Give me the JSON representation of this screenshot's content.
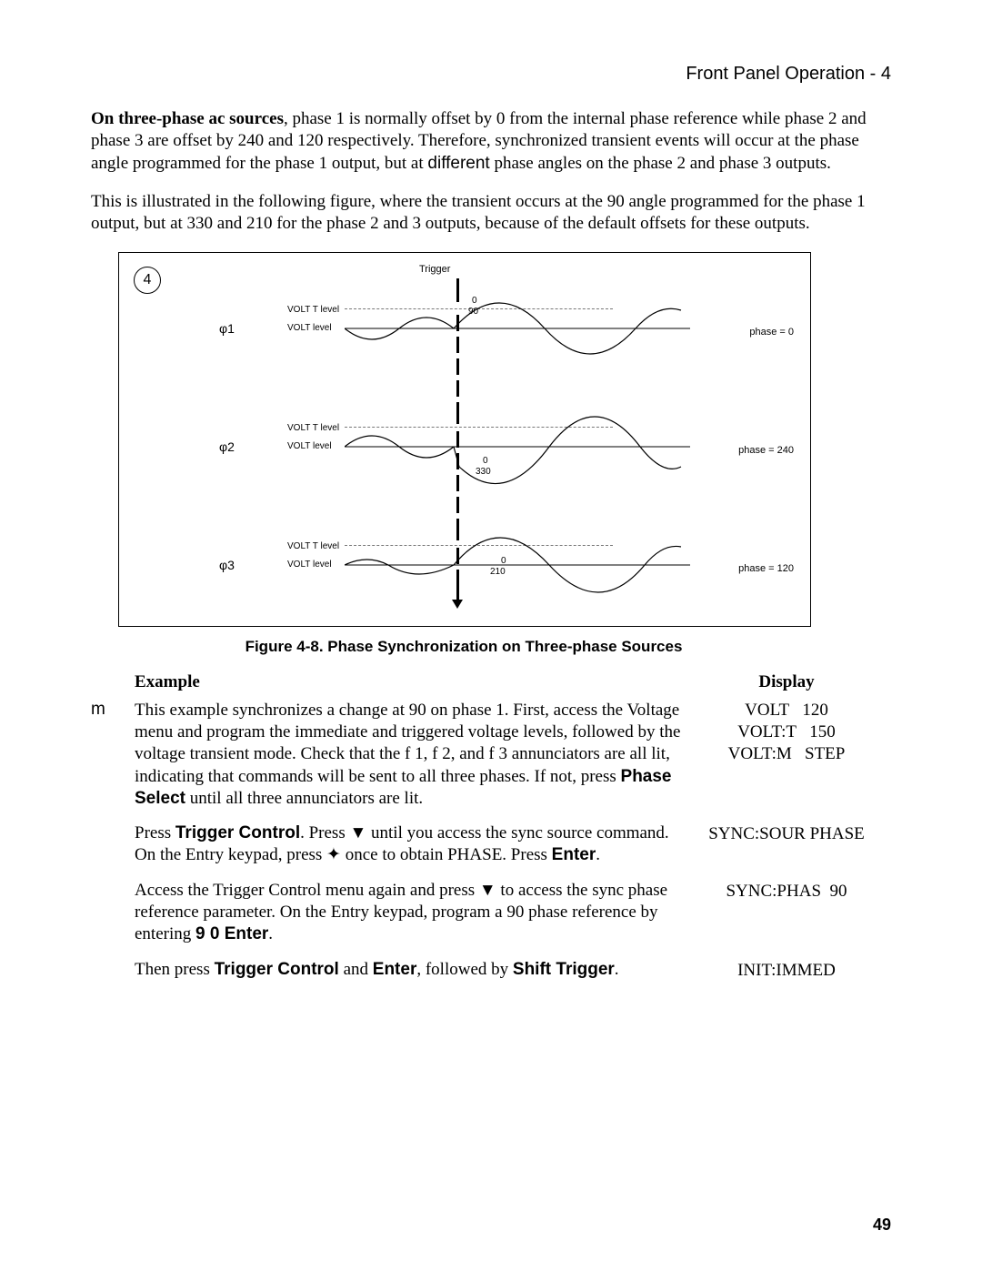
{
  "running_head": "Front Panel Operation - 4",
  "para1_lead": "On three-phase ac sources",
  "para1_rest": ", phase 1 is normally offset by 0  from the internal phase reference while phase 2 and phase 3 are offset by 240  and 120  respectively. Therefore, synchronized transient events will occur at the phase angle programmed for the phase 1 output, but at ",
  "para1_diff": "different",
  "para1_tail": " phase angles on the phase 2 and phase 3 outputs.",
  "para2": "This is illustrated in the following figure, where the transient occurs at the 90  angle programmed for the phase 1 output, but at 330  and 210  for the phase 2 and 3 outputs, because of the default offsets for these outputs.",
  "figure": {
    "corner_number": "4",
    "trigger_label": "Trigger",
    "volt_t_level": "VOLT T level",
    "volt_level": "VOLT level",
    "rows": [
      {
        "phi": "φ1",
        "zero": "0",
        "angle": "90",
        "phase_eq": "phase = 0"
      },
      {
        "phi": "φ2",
        "zero": "0",
        "angle": "330",
        "phase_eq": "phase = 240"
      },
      {
        "phi": "φ3",
        "zero": "0",
        "angle": "210",
        "phase_eq": "phase = 120"
      }
    ],
    "caption": "Figure 4-8. Phase Synchronization on Three-phase Sources",
    "colors": {
      "stroke": "#000000",
      "dash": "#777777",
      "background": "#ffffff"
    },
    "wave_style": {
      "line_width": 1.2,
      "amplitude_small": 18,
      "amplitude_large": 30
    }
  },
  "example": {
    "col_m": "m",
    "header_example": "Example",
    "header_display": "Display",
    "rows": [
      {
        "text_parts": [
          "This example synchronizes a change at 90  on phase 1.  First, access the Voltage menu and program the immediate and triggered voltage levels, followed by the voltage transient mode. Check that the f 1, f 2, and f 3 annunciators are all lit, indicating that commands will be sent to all three phases. If not, press ",
          "Phase Select",
          " until all three annunciators are lit."
        ],
        "display": [
          "VOLT   120",
          "VOLT:T   150",
          "VOLT:M   STEP"
        ]
      },
      {
        "text_parts": [
          "Press ",
          "Trigger Control",
          ". Press ▼ until you access the sync source command. On the Entry keypad, press ✦ once to obtain PHASE. Press ",
          "Enter",
          "."
        ],
        "display": [
          "SYNC:SOUR PHASE"
        ]
      },
      {
        "text_parts": [
          "Access the Trigger Control menu again and press ▼ to access the sync phase reference parameter. On the Entry keypad, program a 90  phase reference by entering ",
          "9 0 Enter",
          "."
        ],
        "display": [
          "SYNC:PHAS  90"
        ]
      },
      {
        "text_parts": [
          "Then press ",
          "Trigger Control",
          " and ",
          "Enter",
          ", followed by ",
          "Shift Trigger",
          "."
        ],
        "display": [
          "INIT:IMMED"
        ]
      }
    ]
  },
  "page_number": "49"
}
